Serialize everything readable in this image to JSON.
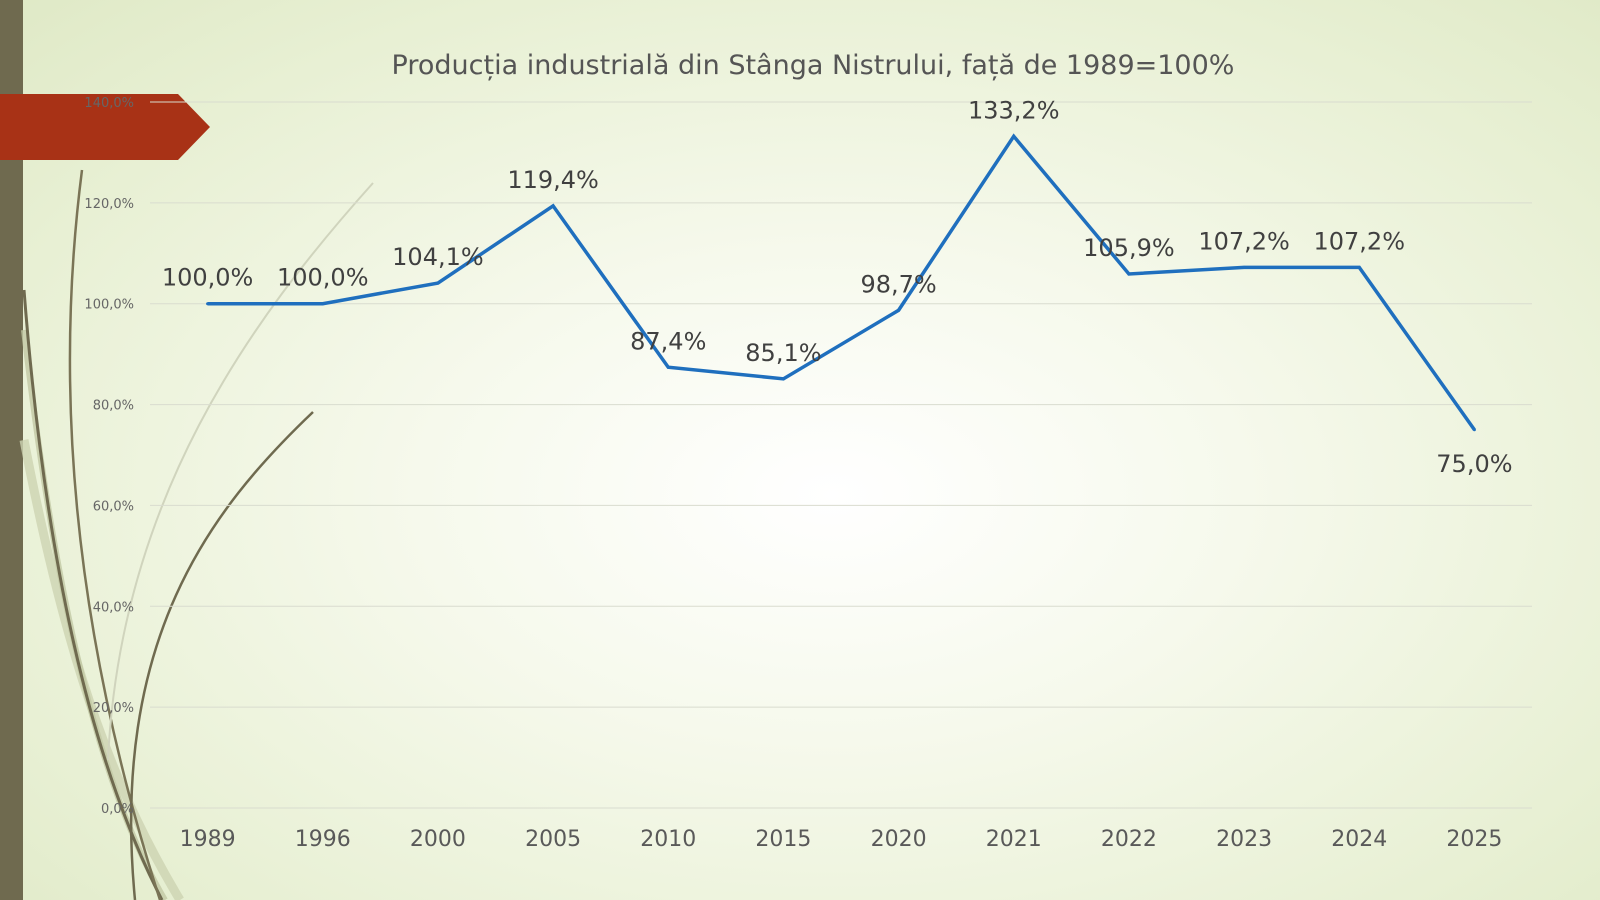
{
  "chart_data": {
    "type": "line",
    "title": "Producția industrială din Stânga Nistrului, față de 1989=100%",
    "xlabel": "",
    "ylabel": "",
    "categories": [
      "1989",
      "1996",
      "2000",
      "2005",
      "2010",
      "2015",
      "2020",
      "2021",
      "2022",
      "2023",
      "2024",
      "2025"
    ],
    "series": [
      {
        "values": [
          100.0,
          100.0,
          104.1,
          119.4,
          87.4,
          85.1,
          98.7,
          133.2,
          105.9,
          107.2,
          107.2,
          75.0
        ],
        "data_labels": [
          "100,0%",
          "100,0%",
          "104,1%",
          "119,4%",
          "87,4%",
          "85,1%",
          "98,7%",
          "133,2%",
          "105,9%",
          "107,2%",
          "107,2%",
          "75,0%"
        ],
        "color": "#1f6fbe"
      }
    ],
    "ylim": [
      0,
      140
    ],
    "yticks": [
      0,
      20,
      40,
      60,
      80,
      100,
      120,
      140
    ],
    "ytick_labels": [
      "0,0%",
      "20,0%",
      "40,0%",
      "60,0%",
      "80,0%",
      "100,0%",
      "120,0%",
      "140,0%"
    ],
    "grid": true,
    "legend": "none"
  },
  "colors": {
    "line": "#1f6fbe",
    "gridline": "#d9dccf",
    "side_bar": "#6f6a4f",
    "accent_tab": "#a83216"
  }
}
